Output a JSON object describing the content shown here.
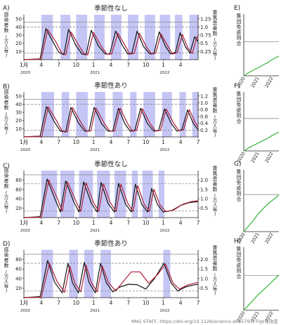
{
  "chart_data": [
    {
      "panel": "A)",
      "type": "line",
      "title": "季節性なし",
      "ylabel_left": "感染者数（万人毎）",
      "ylabel_right": "重篤患者数（万人毎）",
      "yticks_left": [
        10,
        20,
        30,
        40,
        50
      ],
      "ylim_left": [
        0,
        55
      ],
      "yticks_right": [
        0.25,
        0.5,
        0.75,
        1.0,
        1.25
      ],
      "ylim_right": [
        0,
        1.375
      ],
      "month_ticks": [
        "1月",
        "4",
        "7",
        "10",
        "1",
        "4",
        "7",
        "10",
        "1",
        "4"
      ],
      "year_ticks": [
        "2020",
        "2021",
        "2022"
      ],
      "hlines": [
        {
          "value": 46,
          "style": "solid"
        },
        {
          "value": 40,
          "style": "dashed"
        },
        {
          "value": 8,
          "style": "dashed"
        }
      ],
      "distancing_periods": [
        [
          3.0,
          5.0
        ],
        [
          6.3,
          8.0
        ],
        [
          9.0,
          10.9
        ],
        [
          12.1,
          13.9
        ],
        [
          15.0,
          16.8
        ],
        [
          17.9,
          19.7
        ],
        [
          20.8,
          22.6
        ],
        [
          23.4,
          25.2
        ],
        [
          26.0,
          27.3
        ],
        [
          28.5,
          30.0
        ]
      ],
      "series": [
        {
          "name": "感染者",
          "color": "#111111",
          "x": [
            0,
            2.8,
            3.8,
            5.0,
            6.0,
            6.9,
            7.7,
            8.9,
            10.0,
            10.7,
            11.6,
            12.8,
            14.0,
            14.8,
            15.8,
            17.0,
            17.9,
            18.6,
            19.5,
            20.6,
            21.7,
            22.4,
            23.3,
            24.4,
            25.3,
            26.1,
            26.9,
            27.8,
            28.6,
            29.4,
            30.0
          ],
          "values": [
            0,
            1,
            38,
            22,
            9,
            6,
            37,
            18,
            7,
            6,
            36,
            17,
            7,
            7,
            35,
            17,
            7,
            8,
            35,
            16,
            7,
            8,
            34,
            16,
            7,
            9,
            33,
            16,
            8,
            28,
            22
          ]
        },
        {
          "name": "重篤患者",
          "color": "#b0203a",
          "x": [
            0,
            3.0,
            4.1,
            5.5,
            6.5,
            7.2,
            8.1,
            9.4,
            10.4,
            11.0,
            12.0,
            13.3,
            14.3,
            15.1,
            16.2,
            17.5,
            18.2,
            19.0,
            19.9,
            21.1,
            22.0,
            22.7,
            23.6,
            24.9,
            25.6,
            26.4,
            27.3,
            28.2,
            29.0,
            29.8,
            30.0
          ],
          "values": [
            0,
            0.02,
            0.92,
            0.55,
            0.2,
            0.15,
            0.85,
            0.45,
            0.17,
            0.15,
            0.83,
            0.42,
            0.17,
            0.17,
            0.81,
            0.41,
            0.17,
            0.19,
            0.81,
            0.39,
            0.17,
            0.2,
            0.79,
            0.38,
            0.17,
            0.22,
            0.77,
            0.37,
            0.19,
            0.7,
            0.65
          ]
        }
      ]
    },
    {
      "panel": "B)",
      "type": "line",
      "title": "季節性あり",
      "ylabel_left": "感染者数（万人毎）",
      "ylabel_right": "重篤患者数（万人毎）",
      "yticks_left": [
        10,
        20,
        30,
        40,
        50
      ],
      "ylim_left": [
        0,
        55
      ],
      "yticks_right": [
        0.2,
        0.4,
        0.6,
        0.8,
        1.0,
        1.2
      ],
      "ylim_right": [
        0,
        1.32
      ],
      "month_ticks": [
        "1月",
        "4",
        "7",
        "10",
        "1",
        "4",
        "7",
        "10",
        "1",
        "4",
        "7"
      ],
      "year_ticks": [
        "2020",
        "2021",
        "2022"
      ],
      "hlines": [
        {
          "value": 46,
          "style": "solid"
        },
        {
          "value": 40,
          "style": "dashed"
        },
        {
          "value": 8,
          "style": "dashed"
        }
      ],
      "distancing_periods": [
        [
          3.0,
          5.2
        ],
        [
          6.5,
          7.8
        ],
        [
          9.0,
          11.0
        ],
        [
          12.2,
          14.0
        ],
        [
          15.3,
          17.0
        ],
        [
          18.3,
          19.4
        ],
        [
          20.6,
          22.6
        ],
        [
          23.8,
          25.5
        ],
        [
          26.8,
          27.9
        ],
        [
          29.0,
          30.0
        ]
      ],
      "series": [
        {
          "name": "感染者",
          "color": "#111111",
          "x": [
            0,
            2.8,
            3.9,
            5.2,
            6.3,
            7.2,
            8.1,
            9.4,
            10.5,
            11.2,
            12.1,
            13.4,
            14.5,
            15.3,
            16.3,
            17.4,
            18.3,
            19.1,
            20.1,
            21.3,
            22.4,
            23.2,
            24.2,
            25.4,
            26.4,
            27.2,
            28.2,
            29.2,
            30.0
          ],
          "values": [
            0,
            1,
            37,
            19,
            7,
            6,
            36,
            17,
            7,
            7,
            36,
            16,
            7,
            7,
            35,
            16,
            7,
            8,
            35,
            16,
            7,
            8,
            34,
            16,
            7,
            9,
            33,
            16,
            9
          ]
        },
        {
          "name": "重篤患者",
          "color": "#b0203a",
          "x": [
            0,
            3.1,
            4.2,
            5.6,
            6.6,
            7.5,
            8.4,
            9.8,
            10.8,
            11.5,
            12.4,
            13.8,
            14.8,
            15.6,
            16.6,
            17.8,
            18.7,
            19.4,
            20.4,
            21.7,
            22.7,
            23.5,
            24.5,
            25.8,
            26.7,
            27.5,
            28.5,
            29.5,
            30.0
          ],
          "values": [
            0,
            0.02,
            0.88,
            0.48,
            0.17,
            0.15,
            0.86,
            0.43,
            0.17,
            0.17,
            0.85,
            0.41,
            0.17,
            0.17,
            0.84,
            0.41,
            0.17,
            0.19,
            0.83,
            0.4,
            0.17,
            0.19,
            0.82,
            0.4,
            0.18,
            0.21,
            0.8,
            0.42,
            0.3
          ]
        }
      ]
    },
    {
      "panel": "C)",
      "type": "line",
      "title": "季節性なし",
      "ylabel_left": "感染者数（万人毎）",
      "ylabel_right": "重篤患者数（万人毎）",
      "yticks_left": [
        20,
        40,
        60,
        80
      ],
      "ylim_left": [
        0,
        100
      ],
      "yticks_right": [
        0.5,
        1.0,
        1.5,
        2.0
      ],
      "ylim_right": [
        0,
        2.5
      ],
      "month_ticks": [
        "1月",
        "4",
        "7",
        "10",
        "1",
        "4",
        "7",
        "10",
        "1",
        "4",
        "7"
      ],
      "year_ticks": [
        "2020",
        "2021",
        "2022"
      ],
      "hlines": [
        {
          "value": 91,
          "style": "solid"
        },
        {
          "value": 72,
          "style": "dashed"
        },
        {
          "value": 14,
          "style": "dashed"
        }
      ],
      "distancing_periods": [
        [
          3.0,
          5.7
        ],
        [
          6.3,
          8.7
        ],
        [
          9.5,
          11.9
        ],
        [
          12.6,
          14.8
        ],
        [
          15.6,
          17.6
        ],
        [
          18.6,
          19.6
        ],
        [
          20.4,
          22.2
        ],
        [
          23.2,
          24.2
        ]
      ],
      "series": [
        {
          "name": "感染者",
          "color": "#111111",
          "x": [
            0,
            2.8,
            4.0,
            5.4,
            6.3,
            7.2,
            8.6,
            9.5,
            10.3,
            11.6,
            12.6,
            13.3,
            14.5,
            15.6,
            16.3,
            17.5,
            18.5,
            19.2,
            20.3,
            21.3,
            22.0,
            23.0,
            24.0,
            25.5,
            27.0,
            28.5,
            30.0
          ],
          "values": [
            0,
            2,
            82,
            38,
            12,
            78,
            33,
            12,
            76,
            31,
            12,
            75,
            30,
            12,
            73,
            29,
            12,
            71,
            28,
            12,
            62,
            28,
            12,
            15,
            26,
            32,
            34
          ]
        },
        {
          "name": "重篤患者",
          "color": "#b0203a",
          "x": [
            0,
            3.0,
            4.3,
            5.8,
            6.6,
            7.5,
            9.0,
            9.8,
            10.7,
            12.0,
            12.9,
            13.7,
            14.9,
            15.9,
            16.7,
            17.9,
            18.8,
            19.6,
            20.7,
            21.6,
            22.4,
            23.4,
            24.4,
            25.8,
            27.3,
            28.8,
            30.0
          ],
          "values": [
            0,
            0.02,
            2.0,
            1.0,
            0.35,
            1.9,
            0.85,
            0.33,
            1.85,
            0.8,
            0.33,
            1.8,
            0.78,
            0.33,
            1.78,
            0.75,
            0.33,
            1.7,
            0.72,
            0.33,
            1.5,
            0.7,
            0.33,
            0.4,
            0.7,
            0.85,
            0.9
          ]
        }
      ]
    },
    {
      "panel": "D)",
      "type": "line",
      "title": "季節性あり",
      "ylabel_left": "感染者数（万人毎）",
      "ylabel_right": "重篤患者数（万人毎）",
      "yticks_left": [
        20,
        40,
        60,
        80
      ],
      "ylim_left": [
        0,
        100
      ],
      "yticks_right": [
        0.5,
        1.0,
        1.5,
        2.0
      ],
      "ylim_right": [
        0,
        2.5
      ],
      "month_ticks": [
        "1月",
        "4",
        "7",
        "10",
        "1",
        "4",
        "7",
        "10",
        "1",
        "4",
        "7"
      ],
      "year_ticks": [
        "2020",
        "2021",
        "2022"
      ],
      "hlines": [
        {
          "value": 91,
          "style": "solid"
        },
        {
          "value": 72,
          "style": "dashed"
        },
        {
          "value": 14,
          "style": "dashed"
        }
      ],
      "distancing_periods": [
        [
          3.0,
          5.0
        ],
        [
          7.8,
          9.3
        ],
        [
          10.4,
          12.0
        ],
        [
          13.2,
          15.0
        ],
        [
          24.0,
          25.2
        ]
      ],
      "series": [
        {
          "name": "感染者",
          "color": "#111111",
          "x": [
            0,
            2.8,
            4.1,
            5.3,
            6.6,
            7.6,
            8.4,
            9.4,
            10.4,
            11.2,
            12.3,
            13.2,
            14.2,
            15.3,
            16.5,
            18.0,
            19.5,
            21.0,
            22.5,
            24.1,
            25.4,
            26.5,
            27.8,
            29.0,
            30.0
          ],
          "values": [
            0,
            2,
            78,
            32,
            10,
            72,
            30,
            10,
            74,
            32,
            10,
            72,
            31,
            12,
            22,
            28,
            27,
            18,
            40,
            72,
            30,
            14,
            22,
            26,
            28
          ]
        },
        {
          "name": "重篤患者",
          "color": "#b0203a",
          "x": [
            0,
            3.0,
            4.4,
            5.7,
            7.0,
            7.9,
            8.8,
            9.8,
            10.7,
            11.6,
            12.6,
            13.5,
            14.6,
            15.8,
            17.0,
            18.5,
            20.0,
            21.5,
            23.0,
            24.4,
            25.7,
            26.8,
            28.1,
            29.3,
            30.0
          ],
          "values": [
            0,
            0.02,
            1.8,
            0.85,
            0.28,
            1.65,
            0.75,
            0.3,
            1.7,
            0.8,
            0.3,
            1.65,
            0.78,
            0.35,
            0.8,
            1.35,
            1.35,
            0.75,
            1.2,
            1.75,
            0.75,
            0.45,
            0.65,
            0.75,
            0.8
          ]
        }
      ]
    },
    {
      "panel": "E)",
      "type": "line",
      "ylabel": "集団免疫割合",
      "year_ticks": [
        "2020",
        "2021",
        "2022"
      ],
      "ylim": [
        0,
        1
      ],
      "hline": 0.55,
      "series": [
        {
          "name": "集団免疫",
          "color": "#33b533",
          "x": [
            0,
            4,
            8,
            12,
            16,
            20,
            24,
            28,
            30
          ],
          "values": [
            0.0,
            0.05,
            0.09,
            0.13,
            0.17,
            0.21,
            0.26,
            0.3,
            0.32
          ]
        }
      ]
    },
    {
      "panel": "F)",
      "type": "line",
      "ylabel": "集団免疫割合",
      "year_ticks": [
        "2020",
        "2021",
        "2022"
      ],
      "ylim": [
        0,
        1
      ],
      "hline": 0.55,
      "series": [
        {
          "name": "集団免疫",
          "color": "#33b533",
          "x": [
            0,
            4,
            8,
            12,
            16,
            20,
            24,
            28,
            30
          ],
          "values": [
            0.0,
            0.05,
            0.09,
            0.13,
            0.17,
            0.21,
            0.26,
            0.3,
            0.32
          ]
        }
      ]
    },
    {
      "panel": "G)",
      "type": "line",
      "ylabel": "集団免疫割合",
      "year_ticks": [
        "2020",
        "2021",
        "2022"
      ],
      "ylim": [
        0,
        1
      ],
      "hline": 0.6,
      "series": [
        {
          "name": "集団免疫",
          "color": "#33b533",
          "x": [
            0,
            4,
            8,
            12,
            16,
            20,
            24,
            28,
            30
          ],
          "values": [
            0.0,
            0.09,
            0.18,
            0.28,
            0.36,
            0.44,
            0.5,
            0.56,
            0.6
          ]
        }
      ]
    },
    {
      "panel": "H)",
      "type": "line",
      "ylabel": "集団免疫割合",
      "year_ticks": [
        "2020",
        "2021",
        "2022"
      ],
      "ylim": [
        0,
        1
      ],
      "hline": 0.55,
      "series": [
        {
          "name": "集団免疫",
          "color": "#33b533",
          "x": [
            0,
            4,
            8,
            12,
            16,
            20,
            24,
            28,
            30
          ],
          "values": [
            0.0,
            0.08,
            0.16,
            0.24,
            0.31,
            0.38,
            0.45,
            0.52,
            0.56
          ]
        }
      ]
    }
  ],
  "colors": {
    "distancing": "#c5c6f5",
    "infected": "#111111",
    "critical": "#b0203a",
    "immunity": "#33b533"
  },
  "credit": "NNG STAFF, https://doi.org/10.1126/science.abb5793, Figsを改変"
}
